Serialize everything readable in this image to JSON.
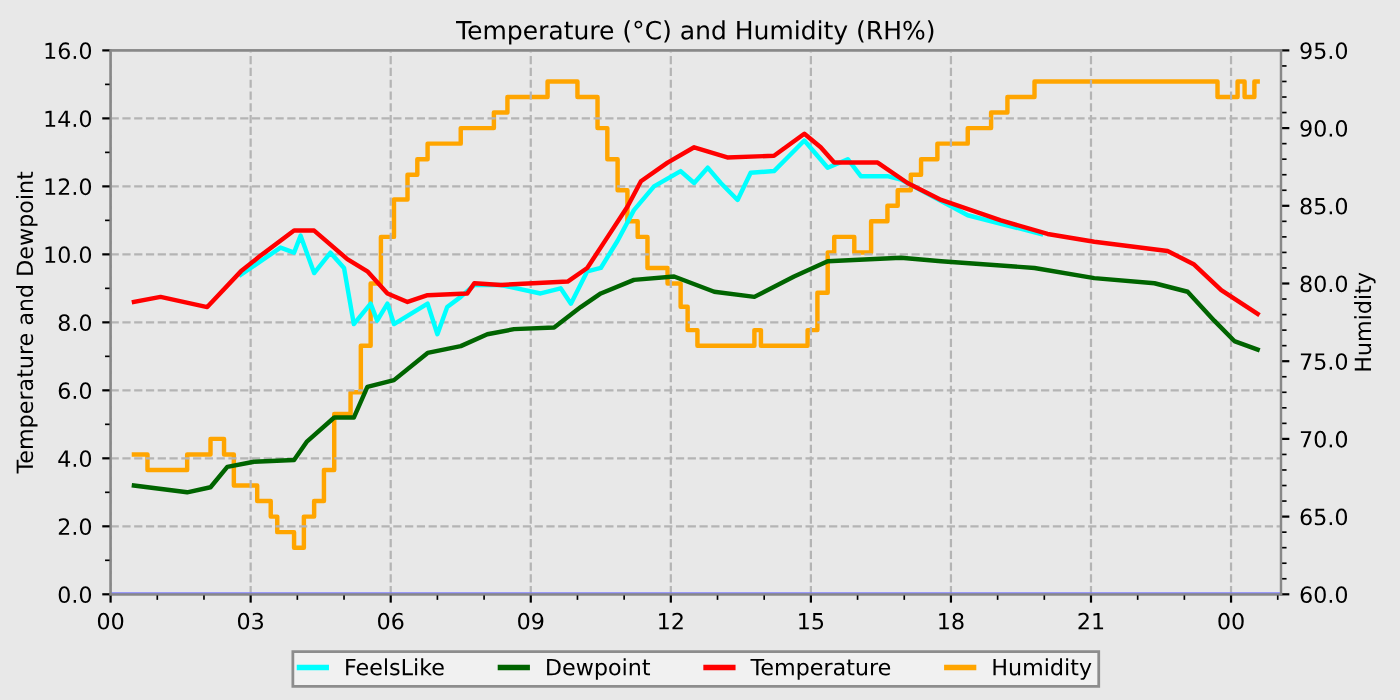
{
  "chart_data": {
    "type": "line",
    "title": "Temperature (°C) and Humidity (RH%)",
    "ylabel": "Temperature and Dewpoint",
    "y2label": "Humidity",
    "xlim": [
      0,
      25.07
    ],
    "xticks": [
      {
        "value": 0,
        "label": "00"
      },
      {
        "value": 3,
        "label": "03"
      },
      {
        "value": 6,
        "label": "06"
      },
      {
        "value": 9,
        "label": "09"
      },
      {
        "value": 12,
        "label": "12"
      },
      {
        "value": 15,
        "label": "15"
      },
      {
        "value": 18,
        "label": "18"
      },
      {
        "value": 21,
        "label": "21"
      },
      {
        "value": 24,
        "label": "00"
      }
    ],
    "ylim": [
      0,
      16
    ],
    "yticks": [
      {
        "value": 0,
        "label": "0.0"
      },
      {
        "value": 2,
        "label": "2.0"
      },
      {
        "value": 4,
        "label": "4.0"
      },
      {
        "value": 6,
        "label": "6.0"
      },
      {
        "value": 8,
        "label": "8.0"
      },
      {
        "value": 10,
        "label": "10.0"
      },
      {
        "value": 12,
        "label": "12.0"
      },
      {
        "value": 14,
        "label": "14.0"
      },
      {
        "value": 16,
        "label": "16.0"
      }
    ],
    "y2lim": [
      60,
      95
    ],
    "y2ticks": [
      {
        "value": 60,
        "label": "60.0"
      },
      {
        "value": 65,
        "label": "65.0"
      },
      {
        "value": 70,
        "label": "70.0"
      },
      {
        "value": 75,
        "label": "75.0"
      },
      {
        "value": 80,
        "label": "80.0"
      },
      {
        "value": 85,
        "label": "85.0"
      },
      {
        "value": 90,
        "label": "90.0"
      },
      {
        "value": 95,
        "label": "95.0"
      }
    ],
    "grid": true,
    "legend": "bottom",
    "marker": "none",
    "line_style": "solid",
    "ref_lines": [
      {
        "axis": "y",
        "value": 0,
        "color": "#8080ff"
      }
    ],
    "series": [
      {
        "name": "FeelsLike",
        "color": "#00ffff",
        "x": [
          2.79,
          3.64,
          3.93,
          4.07,
          4.36,
          4.71,
          5.0,
          5.21,
          5.57,
          5.71,
          5.93,
          6.07,
          6.43,
          6.79,
          7.0,
          7.21,
          7.5,
          7.79,
          8.36,
          9.21,
          9.64,
          9.86,
          10.21,
          10.5,
          10.86,
          11.21,
          11.64,
          12.21,
          12.5,
          12.79,
          13.07,
          13.43,
          13.71,
          14.21,
          14.5,
          14.86,
          15.36,
          15.79,
          16.07,
          16.64,
          16.93,
          18.36,
          19.93
        ],
        "values": [
          9.4,
          10.2,
          10.05,
          10.55,
          9.45,
          10.05,
          9.6,
          7.95,
          8.55,
          8.05,
          8.55,
          7.95,
          8.25,
          8.55,
          7.65,
          8.45,
          8.75,
          9.1,
          9.1,
          8.85,
          9.0,
          8.55,
          9.5,
          9.6,
          10.4,
          11.3,
          12.0,
          12.45,
          12.1,
          12.55,
          12.1,
          11.6,
          12.4,
          12.45,
          12.85,
          13.35,
          12.55,
          12.8,
          12.3,
          12.3,
          12.2,
          11.15,
          10.6
        ]
      },
      {
        "name": "Dewpoint",
        "color": "#006400",
        "x": [
          0.5,
          1.64,
          2.14,
          2.5,
          3.07,
          3.93,
          4.21,
          4.79,
          5.21,
          5.5,
          6.07,
          6.79,
          7.5,
          8.07,
          8.64,
          9.5,
          10.07,
          10.5,
          11.21,
          12.07,
          12.93,
          13.79,
          14.64,
          15.36,
          16.93,
          17.79,
          19.79,
          21.07,
          22.36,
          23.07,
          23.64,
          24.07,
          24.57
        ],
        "values": [
          3.2,
          3.0,
          3.15,
          3.75,
          3.9,
          3.95,
          4.5,
          5.2,
          5.2,
          6.1,
          6.3,
          7.1,
          7.3,
          7.65,
          7.8,
          7.85,
          8.45,
          8.85,
          9.25,
          9.35,
          8.9,
          8.75,
          9.35,
          9.8,
          9.9,
          9.8,
          9.6,
          9.3,
          9.15,
          8.9,
          8.05,
          7.45,
          7.2
        ]
      },
      {
        "name": "Temperature",
        "color": "#ff0000",
        "x": [
          0.5,
          1.07,
          2.07,
          2.79,
          3.2,
          3.93,
          4.36,
          5.07,
          5.5,
          5.93,
          6.36,
          6.79,
          7.64,
          7.79,
          8.36,
          9.79,
          10.21,
          10.64,
          11.07,
          11.36,
          11.93,
          12.5,
          13.21,
          14.21,
          14.86,
          15.21,
          15.5,
          16.43,
          17.07,
          17.79,
          19.07,
          20.07,
          21.07,
          22.64,
          23.21,
          23.79,
          24.57
        ],
        "values": [
          8.6,
          8.75,
          8.45,
          9.5,
          9.95,
          10.7,
          10.7,
          9.86,
          9.5,
          8.85,
          8.6,
          8.8,
          8.85,
          9.15,
          9.1,
          9.2,
          9.6,
          10.5,
          11.4,
          12.15,
          12.7,
          13.15,
          12.85,
          12.9,
          13.55,
          13.15,
          12.7,
          12.7,
          12.1,
          11.6,
          11.0,
          10.6,
          10.37,
          10.1,
          9.7,
          8.95,
          8.25
        ]
      },
      {
        "name": "Humidity",
        "color": "#ffa500",
        "type": "step",
        "axis": "y2",
        "x": [
          0.5,
          0.79,
          1.64,
          2.14,
          2.43,
          2.64,
          3.14,
          3.43,
          3.57,
          3.93,
          4.14,
          4.36,
          4.57,
          4.79,
          5.14,
          5.36,
          5.57,
          5.79,
          6.07,
          6.36,
          6.57,
          6.79,
          7.5,
          8.21,
          8.5,
          9.36,
          10.0,
          10.43,
          10.64,
          10.86,
          11.07,
          11.29,
          11.5,
          11.93,
          12.21,
          12.36,
          12.57,
          13.79,
          13.93,
          14.93,
          15.14,
          15.36,
          15.5,
          15.93,
          16.29,
          16.64,
          16.86,
          17.14,
          17.36,
          17.71,
          18.36,
          18.86,
          19.21,
          19.79,
          23.71,
          24.14,
          24.29,
          24.5,
          24.57
        ],
        "values": [
          69,
          68,
          69,
          70,
          69,
          67,
          66,
          65,
          64,
          63,
          65,
          66,
          68,
          71.6,
          73,
          76,
          80,
          83,
          85.4,
          87,
          88,
          89,
          90,
          91,
          92,
          93,
          92,
          90,
          88,
          86,
          84,
          83,
          81,
          80,
          78.5,
          77,
          76,
          77,
          76,
          77,
          79.4,
          82,
          83,
          82,
          84,
          85,
          86,
          87,
          88,
          89,
          90,
          91,
          92,
          93,
          92,
          93,
          92,
          93,
          93
        ]
      }
    ]
  }
}
